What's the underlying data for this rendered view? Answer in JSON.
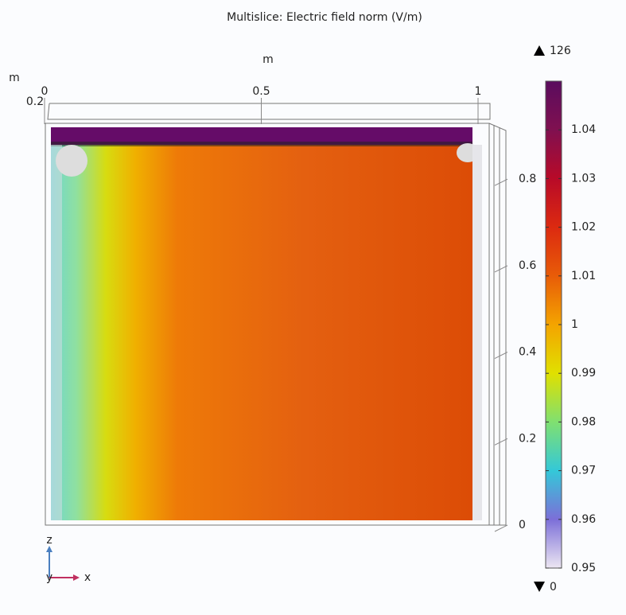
{
  "chart_data": {
    "type": "field",
    "title": "Multislice: Electric field norm (V/m)",
    "x_unit": "m",
    "z_unit": "m",
    "xlim": [
      0,
      1
    ],
    "xticks": [
      0,
      0.5,
      1
    ],
    "depth_tick": 0.2,
    "zlim": [
      0,
      0.92
    ],
    "zticks": [
      0,
      0.2,
      0.4,
      0.6,
      0.8
    ],
    "clim": [
      0.95,
      1.05
    ],
    "cticks": [
      0.95,
      0.96,
      0.97,
      0.98,
      0.99,
      1,
      1.01,
      1.02,
      1.03,
      1.04
    ],
    "data_max": 126,
    "data_min": 0,
    "triad": {
      "z": "z",
      "y": "y",
      "x": "x"
    }
  }
}
